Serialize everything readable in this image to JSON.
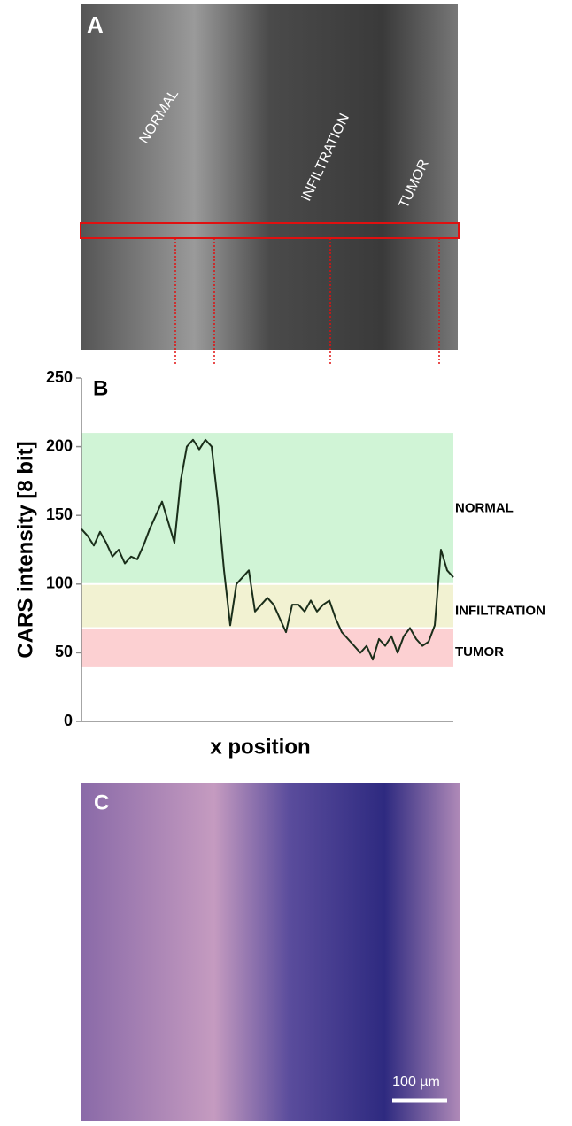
{
  "panel_a": {
    "label": "A",
    "annotations": [
      "NORMAL",
      "INFILTRATION",
      "TUMOR"
    ]
  },
  "chart_data": {
    "type": "line",
    "panel_label": "B",
    "ylabel": "CARS intensity [8 bit]",
    "xlabel": "x position",
    "ylim": [
      0,
      250
    ],
    "yticks": [
      0,
      50,
      100,
      150,
      200,
      250
    ],
    "bands": [
      {
        "name": "NORMAL",
        "range": [
          100,
          210
        ],
        "color": "#d0f4d6"
      },
      {
        "name": "INFILTRATION",
        "range": [
          68,
          100
        ],
        "color": "#f2f2d2"
      },
      {
        "name": "TUMOR",
        "range": [
          40,
          68
        ],
        "color": "#fcd0d2"
      }
    ],
    "categories": [
      null,
      null,
      null,
      null,
      null,
      null,
      null,
      null,
      null,
      null,
      null,
      null,
      null,
      null,
      null,
      null,
      null,
      null,
      null,
      null,
      null,
      null,
      null,
      null,
      null,
      null,
      null,
      null,
      null,
      null,
      null,
      null,
      null,
      null,
      null,
      null,
      null,
      null,
      null,
      null,
      null,
      null,
      null,
      null,
      null,
      null,
      null,
      null,
      null,
      null,
      null,
      null,
      null,
      null,
      null,
      null,
      null,
      null,
      null,
      null,
      null
    ],
    "series": [
      {
        "color": "#1a2e1a",
        "values": [
          140,
          135,
          128,
          138,
          130,
          120,
          125,
          115,
          120,
          118,
          128,
          140,
          150,
          160,
          145,
          130,
          175,
          200,
          205,
          198,
          205,
          200,
          160,
          110,
          70,
          100,
          105,
          110,
          80,
          85,
          90,
          85,
          75,
          65,
          85,
          85,
          80,
          88,
          80,
          85,
          88,
          75,
          65,
          60,
          55,
          50,
          55,
          45,
          60,
          55,
          62,
          50,
          62,
          68,
          60,
          55,
          58,
          70,
          125,
          110,
          105
        ]
      }
    ]
  },
  "panel_c": {
    "label": "C",
    "scale_bar": "100 µm"
  }
}
